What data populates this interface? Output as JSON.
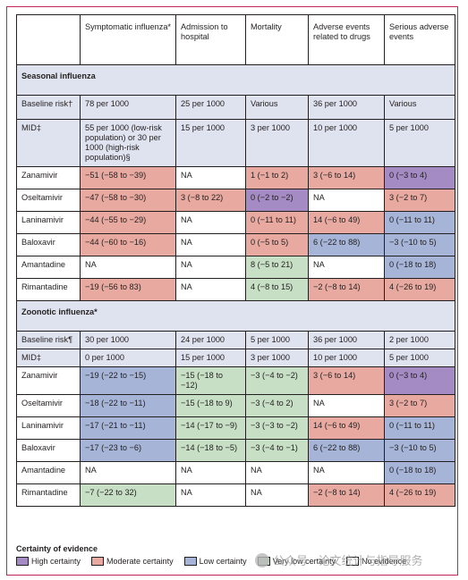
{
  "columns": [
    "",
    "Symptomatic influenza*",
    "Admission to hospital",
    "Mortality",
    "Adverse events related to drugs",
    "Serious adverse events"
  ],
  "seasonal": {
    "title": "Seasonal influenza",
    "baseline": [
      "Baseline risk†",
      "78 per 1000",
      "25 per 1000",
      "Various",
      "36 per 1000",
      "Various"
    ],
    "mid": [
      "MID‡",
      "55 per 1000 (low-risk population) or 30 per 1000 (high-risk population)§",
      "15 per 1000",
      "3 per 1000",
      "10 per 1000",
      "5 per 1000"
    ],
    "rows": [
      {
        "drug": "Zanamivir",
        "cells": [
          [
            "−51 (−58 to −39)",
            "mod"
          ],
          [
            "NA",
            "na"
          ],
          [
            "1 (−1 to 2)",
            "mod"
          ],
          [
            "3 (−6 to 14)",
            "mod"
          ],
          [
            "0 (−3 to 4)",
            "high"
          ]
        ]
      },
      {
        "drug": "Oseltamivir",
        "cells": [
          [
            "−47 (−58 to −30)",
            "mod"
          ],
          [
            "3 (−8 to 22)",
            "mod"
          ],
          [
            "0 (−2 to −2)",
            "high"
          ],
          [
            "NA",
            "na"
          ],
          [
            "3 (−2 to 7)",
            "mod"
          ]
        ]
      },
      {
        "drug": "Laninamivir",
        "cells": [
          [
            "−44 (−55 to −29)",
            "mod"
          ],
          [
            "NA",
            "na"
          ],
          [
            "0 (−11 to 11)",
            "mod"
          ],
          [
            "14 (−6 to 49)",
            "mod"
          ],
          [
            "0 (−11 to 11)",
            "low"
          ]
        ]
      },
      {
        "drug": "Baloxavir",
        "cells": [
          [
            "−44 (−60 to −16)",
            "mod"
          ],
          [
            "NA",
            "na"
          ],
          [
            "0 (−5 to 5)",
            "mod"
          ],
          [
            "6 (−22 to 88)",
            "low"
          ],
          [
            "−3 (−10 to 5)",
            "low"
          ]
        ]
      },
      {
        "drug": "Amantadine",
        "cells": [
          [
            "NA",
            "na"
          ],
          [
            "NA",
            "na"
          ],
          [
            "8 (−5 to 21)",
            "vlow"
          ],
          [
            "NA",
            "na"
          ],
          [
            "0 (−18 to 18)",
            "low"
          ]
        ]
      },
      {
        "drug": "Rimantadine",
        "cells": [
          [
            "−19 (−56 to 83)",
            "mod"
          ],
          [
            "NA",
            "na"
          ],
          [
            "4 (−8 to 15)",
            "vlow"
          ],
          [
            "−2 (−8 to 14)",
            "mod"
          ],
          [
            "4 (−26 to 19)",
            "mod"
          ]
        ]
      }
    ]
  },
  "zoonotic": {
    "title": "Zoonotic influenza*",
    "baseline": [
      "Baseline risk¶",
      "30 per 1000",
      "24 per 1000",
      "5 per 1000",
      "36 per 1000",
      "2 per 1000"
    ],
    "mid": [
      "MID‡",
      "0 per 1000",
      "15 per 1000",
      "3 per 1000",
      "10 per 1000",
      "5 per 1000"
    ],
    "rows": [
      {
        "drug": "Zanamivir",
        "cells": [
          [
            "−19 (−22 to −15)",
            "low"
          ],
          [
            "−15 (−18 to −12)",
            "vlow"
          ],
          [
            "−3 (−4 to −2)",
            "vlow"
          ],
          [
            "3 (−6 to 14)",
            "mod"
          ],
          [
            "0 (−3 to 4)",
            "high"
          ]
        ]
      },
      {
        "drug": "Oseltamivir",
        "cells": [
          [
            "−18 (−22 to −11)",
            "low"
          ],
          [
            "−15 (−18 to 9)",
            "vlow"
          ],
          [
            "−3 (−4 to 2)",
            "vlow"
          ],
          [
            "NA",
            "na"
          ],
          [
            "3 (−2 to 7)",
            "mod"
          ]
        ]
      },
      {
        "drug": "Laninamivir",
        "cells": [
          [
            "−17 (−21 to −11)",
            "low"
          ],
          [
            "−14 (−17 to −9)",
            "vlow"
          ],
          [
            "−3 (−3 to −2)",
            "vlow"
          ],
          [
            "14 (−6 to 49)",
            "mod"
          ],
          [
            "0 (−11 to 11)",
            "low"
          ]
        ]
      },
      {
        "drug": "Baloxavir",
        "cells": [
          [
            "−17 (−23 to −6)",
            "low"
          ],
          [
            "−14 (−18 to −5)",
            "vlow"
          ],
          [
            "−3 (−4 to −1)",
            "vlow"
          ],
          [
            "6 (−22 to 88)",
            "low"
          ],
          [
            "−3 (−10 to 5)",
            "low"
          ]
        ]
      },
      {
        "drug": "Amantadine",
        "cells": [
          [
            "NA",
            "na"
          ],
          [
            "NA",
            "na"
          ],
          [
            "NA",
            "na"
          ],
          [
            "NA",
            "na"
          ],
          [
            "0 (−18 to 18)",
            "low"
          ]
        ]
      },
      {
        "drug": "Rimantadine",
        "cells": [
          [
            "−7 (−22 to 32)",
            "vlow"
          ],
          [
            "NA",
            "na"
          ],
          [
            "NA",
            "na"
          ],
          [
            "−2 (−8 to 14)",
            "mod"
          ],
          [
            "4 (−26 to 19)",
            "mod"
          ]
        ]
      }
    ]
  },
  "legend": {
    "title": "Certainty of evidence",
    "items": [
      {
        "label": "High certainty",
        "color": "#a58bc3"
      },
      {
        "label": "Moderate certainty",
        "color": "#e8aaa0"
      },
      {
        "label": "Low certainty",
        "color": "#a6b5d7"
      },
      {
        "label": "Very low certainty",
        "color": "#c7dfc4"
      },
      {
        "label": "No evidence",
        "color": "#ffffff"
      }
    ]
  },
  "watermark": "公众号 · 论文统计与指导服务"
}
